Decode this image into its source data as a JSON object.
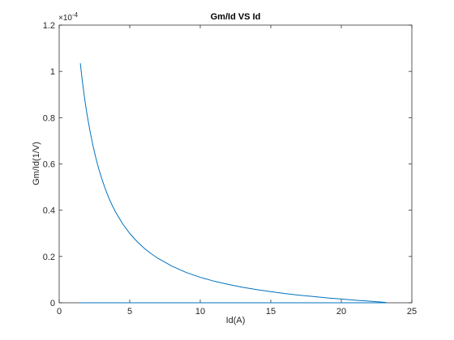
{
  "chart_data": {
    "type": "line",
    "title": "Gm/Id VS Id",
    "xlabel": "Id(A)",
    "ylabel": "Gm/Id(1/V)",
    "xlim": [
      0,
      25
    ],
    "ylim": [
      0,
      1.2
    ],
    "y_exponent_label": "×10",
    "y_exponent_power": "-4",
    "x_ticks": [
      0,
      5,
      10,
      15,
      20,
      25
    ],
    "x_tick_labels": [
      "0",
      "5",
      "10",
      "15",
      "20",
      "25"
    ],
    "y_ticks": [
      0,
      0.2,
      0.4,
      0.6,
      0.8,
      1,
      1.2
    ],
    "y_tick_labels": [
      "0",
      "0.2",
      "0.4",
      "0.6",
      "0.8",
      "1",
      "1.2"
    ],
    "grid": false,
    "line_color": "#0072bd",
    "series": [
      {
        "x": [
          1.5,
          1.6,
          1.7,
          1.8,
          1.9,
          2.0,
          2.2,
          2.4,
          2.6,
          2.8,
          3.0,
          3.25,
          3.5,
          3.75,
          4.0,
          4.5,
          5.0,
          5.5,
          6.0,
          6.5,
          7.0,
          8.0,
          9.0,
          10.0,
          11.0,
          12.0,
          13.0,
          14.0,
          15.0,
          16.0,
          17.0,
          18.0,
          19.0,
          20.0,
          21.0,
          22.0,
          23.0,
          23.2
        ],
        "y": [
          1.035,
          0.98,
          0.93,
          0.885,
          0.843,
          0.805,
          0.737,
          0.678,
          0.626,
          0.58,
          0.54,
          0.495,
          0.456,
          0.422,
          0.392,
          0.341,
          0.3,
          0.266,
          0.237,
          0.213,
          0.192,
          0.158,
          0.131,
          0.11,
          0.093,
          0.079,
          0.067,
          0.057,
          0.048,
          0.04,
          0.033,
          0.027,
          0.021,
          0.016,
          0.011,
          0.007,
          0.002,
          0.001
        ]
      },
      {
        "x": [
          1.5,
          23.2
        ],
        "y": [
          0.0,
          0.0
        ]
      }
    ]
  }
}
